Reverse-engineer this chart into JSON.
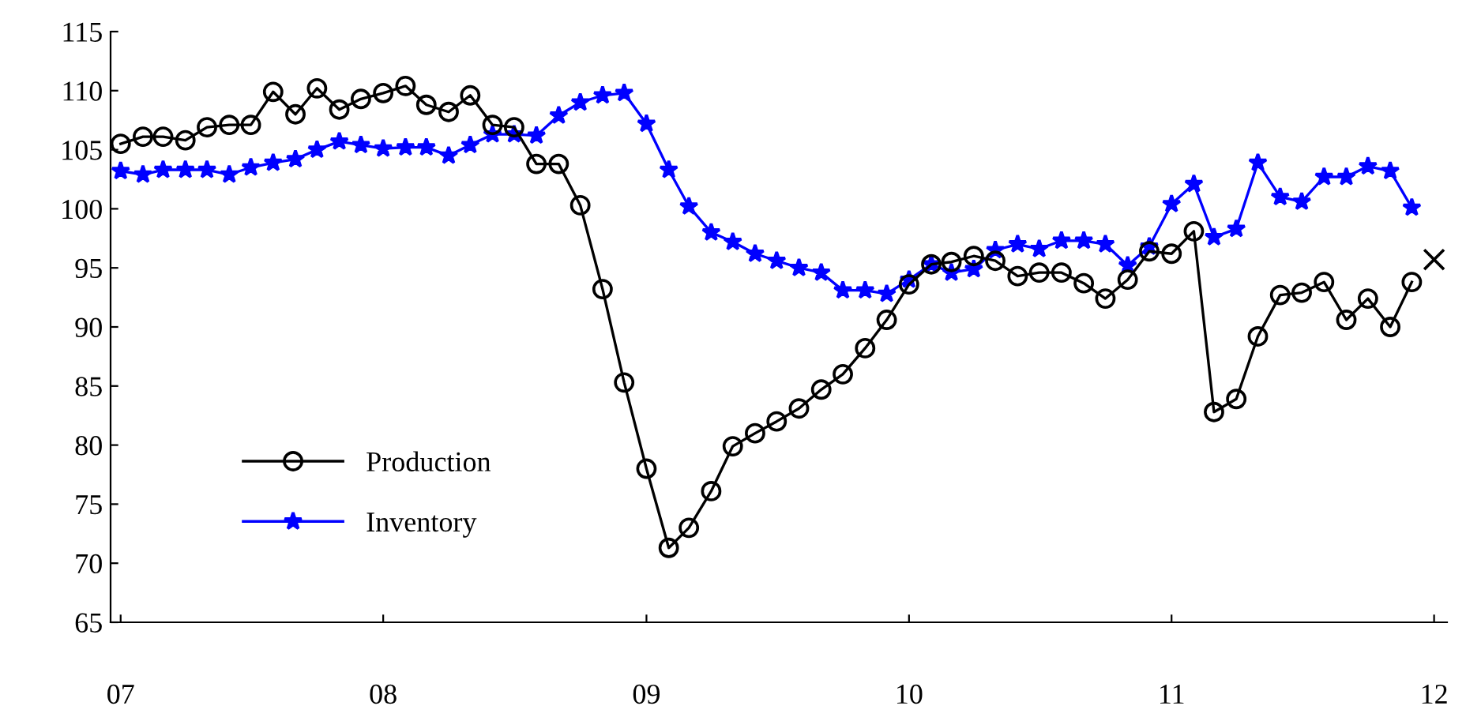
{
  "chart_data": {
    "type": "line",
    "x": [
      "2007-01",
      "2007-02",
      "2007-03",
      "2007-04",
      "2007-05",
      "2007-06",
      "2007-07",
      "2007-08",
      "2007-09",
      "2007-10",
      "2007-11",
      "2007-12",
      "2008-01",
      "2008-02",
      "2008-03",
      "2008-04",
      "2008-05",
      "2008-06",
      "2008-07",
      "2008-08",
      "2008-09",
      "2008-10",
      "2008-11",
      "2008-12",
      "2009-01",
      "2009-02",
      "2009-03",
      "2009-04",
      "2009-05",
      "2009-06",
      "2009-07",
      "2009-08",
      "2009-09",
      "2009-10",
      "2009-11",
      "2009-12",
      "2010-01",
      "2010-02",
      "2010-03",
      "2010-04",
      "2010-05",
      "2010-06",
      "2010-07",
      "2010-08",
      "2010-09",
      "2010-10",
      "2010-11",
      "2010-12",
      "2011-01",
      "2011-02",
      "2011-03",
      "2011-04",
      "2011-05",
      "2011-06",
      "2011-07",
      "2011-08",
      "2011-09",
      "2011-10",
      "2011-11",
      "2011-12"
    ],
    "series": [
      {
        "name": "Production",
        "color": "#000000",
        "marker": "circle",
        "values": [
          105.5,
          106.1,
          106.1,
          105.8,
          106.9,
          107.1,
          107.1,
          109.9,
          108.0,
          110.2,
          108.4,
          109.3,
          109.8,
          110.4,
          108.8,
          108.2,
          109.6,
          107.1,
          106.9,
          103.8,
          103.8,
          100.3,
          93.2,
          85.3,
          78.0,
          71.3,
          73.0,
          76.1,
          79.9,
          81.0,
          82.0,
          83.1,
          84.7,
          86.0,
          88.2,
          90.6,
          93.6,
          95.3,
          95.5,
          96.0,
          95.6,
          94.3,
          94.6,
          94.6,
          93.7,
          92.4,
          94.0,
          96.4,
          96.2,
          98.1,
          82.8,
          83.9,
          89.2,
          92.7,
          92.9,
          93.8,
          90.6,
          92.4,
          90.0,
          93.8
        ]
      },
      {
        "name": "Inventory",
        "color": "#0000ff",
        "marker": "star",
        "values": [
          103.2,
          102.9,
          103.3,
          103.3,
          103.3,
          102.9,
          103.5,
          103.9,
          104.2,
          105.0,
          105.7,
          105.4,
          105.1,
          105.2,
          105.2,
          104.5,
          105.4,
          106.3,
          106.3,
          106.2,
          107.9,
          109.0,
          109.6,
          109.8,
          107.2,
          103.3,
          100.2,
          98.0,
          97.2,
          96.2,
          95.6,
          95.0,
          94.6,
          93.1,
          93.1,
          92.8,
          94.0,
          95.3,
          94.6,
          94.9,
          96.5,
          97.0,
          96.6,
          97.3,
          97.3,
          97.0,
          95.2,
          96.8,
          100.4,
          102.1,
          97.6,
          98.3,
          103.9,
          101.0,
          100.6,
          102.7,
          102.7,
          103.6,
          103.2,
          100.1
        ]
      },
      {
        "type": "scatter",
        "color": "#000000",
        "marker": "cross",
        "x": [
          "2012-01"
        ],
        "values": [
          95.7
        ]
      }
    ],
    "xlim": [
      "2006-12-18",
      "2012-01-19"
    ],
    "xticks": [
      {
        "value": "2007-01",
        "label": "07"
      },
      {
        "value": "2008-01",
        "label": "08"
      },
      {
        "value": "2009-01",
        "label": "09"
      },
      {
        "value": "2010-01",
        "label": "10"
      },
      {
        "value": "2011-01",
        "label": "11"
      },
      {
        "value": "2012-01",
        "label": "12"
      }
    ],
    "ylim": [
      65,
      115
    ],
    "yticks": [
      65,
      70,
      75,
      80,
      85,
      90,
      95,
      100,
      105,
      110,
      115
    ],
    "grid": false,
    "legend": "bottom left"
  }
}
